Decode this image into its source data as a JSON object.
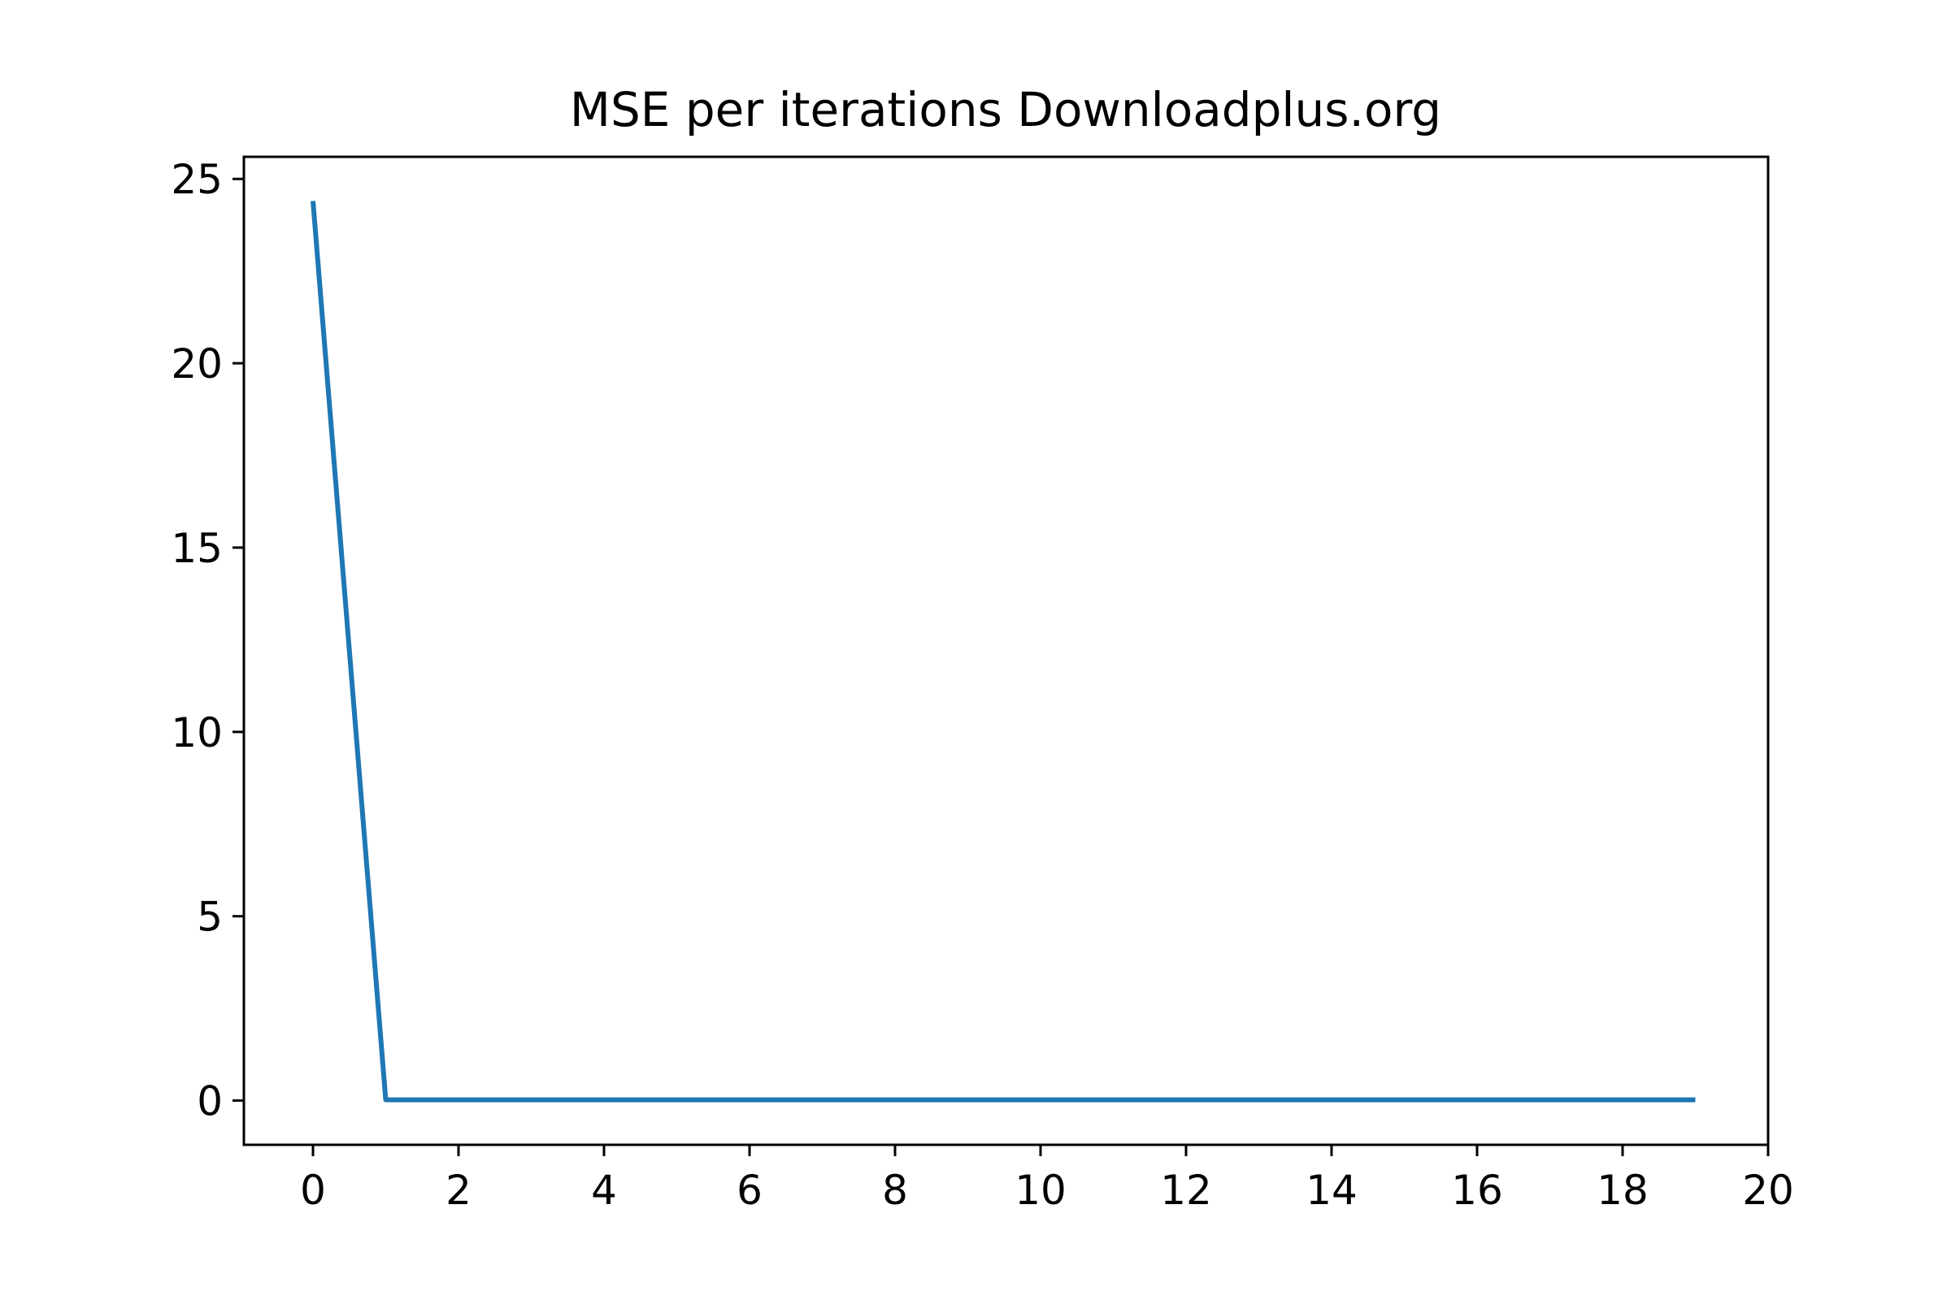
{
  "chart_data": {
    "type": "line",
    "title": "MSE per iterations Downloadplus.org",
    "xlabel": "",
    "ylabel": "",
    "xlim": [
      -0.95,
      20
    ],
    "ylim": [
      -1.2,
      25.6
    ],
    "xticks": [
      0,
      2,
      4,
      6,
      8,
      10,
      12,
      14,
      16,
      18,
      20
    ],
    "yticks": [
      0,
      5,
      10,
      15,
      20,
      25
    ],
    "grid": false,
    "series": [
      {
        "color": "#1f77b4",
        "x": [
          0,
          1,
          2,
          3,
          4,
          5,
          6,
          7,
          8,
          9,
          10,
          11,
          12,
          13,
          14,
          15,
          16,
          17,
          18,
          19
        ],
        "y": [
          24.4,
          0.02,
          0.02,
          0.02,
          0.02,
          0.02,
          0.02,
          0.02,
          0.02,
          0.02,
          0.02,
          0.02,
          0.02,
          0.02,
          0.02,
          0.02,
          0.02,
          0.02,
          0.02,
          0.02
        ]
      }
    ]
  }
}
